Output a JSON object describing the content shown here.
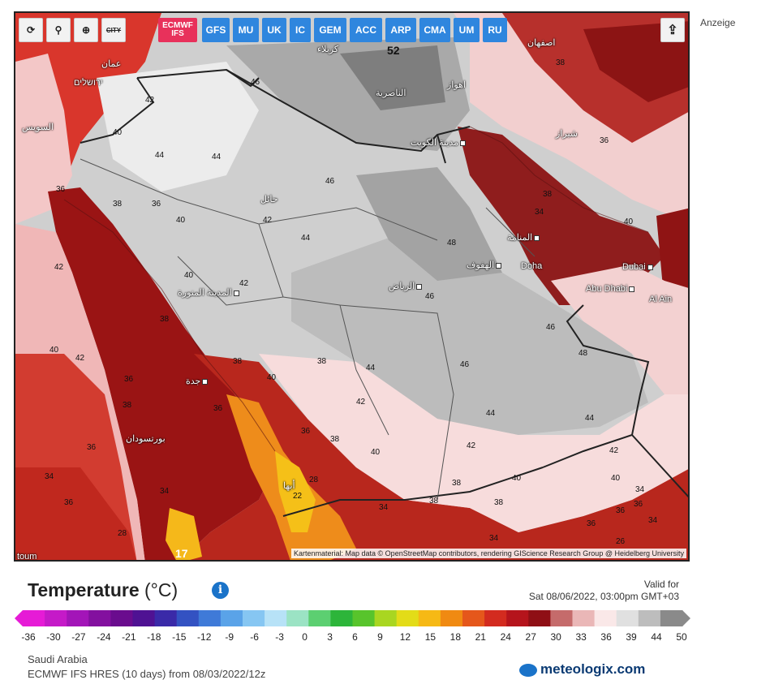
{
  "toolbar": {
    "tools": [
      {
        "name": "refresh-icon",
        "glyph": "⟳"
      },
      {
        "name": "location-pin-icon",
        "glyph": "⚲"
      },
      {
        "name": "zoom-icon",
        "glyph": "⊕"
      },
      {
        "name": "city-toggle-icon",
        "glyph": "CITY"
      }
    ],
    "models": [
      "GFS",
      "MU",
      "UK",
      "IC",
      "GEM",
      "ACC",
      "ARP",
      "CMA",
      "UM",
      "RU"
    ],
    "active_model_line1": "ECMWF",
    "active_model_line2": "IFS",
    "share_icon": "share-icon"
  },
  "ad_label": "Anzeige",
  "map": {
    "attribution": "Kartenmaterial: Map data © OpenStreetMap contributors, rendering GIScience Research Group @ Heidelberg University",
    "cities": [
      {
        "id": "riyadh",
        "text": "الرياض"
      },
      {
        "id": "medina",
        "text": "المدينة المنورة"
      },
      {
        "id": "jeddah",
        "text": "جدة"
      },
      {
        "id": "kuwait",
        "text": "مدينة الكويت"
      },
      {
        "id": "manama",
        "text": "المنامة"
      },
      {
        "id": "hofuf",
        "text": "الهفوف"
      },
      {
        "id": "doha",
        "text": "Doha"
      },
      {
        "id": "dubai",
        "text": "Dubai"
      },
      {
        "id": "abudhabi",
        "text": "Abu Dhabi"
      },
      {
        "id": "alain",
        "text": "Al Ain"
      },
      {
        "id": "hail",
        "text": "حائل"
      },
      {
        "id": "nasiriyah",
        "text": "الناصرية"
      },
      {
        "id": "ahvaz",
        "text": "اهواز"
      },
      {
        "id": "shiraz",
        "text": "شيراز"
      },
      {
        "id": "isfahan",
        "text": "اصفهان"
      },
      {
        "id": "amman",
        "text": "عمان"
      },
      {
        "id": "jerusalem",
        "text": "ירושלים"
      },
      {
        "id": "suez",
        "text": "السويس"
      },
      {
        "id": "portsudan",
        "text": "بورتسودان"
      },
      {
        "id": "karbala",
        "text": "كربلاء"
      },
      {
        "id": "abha",
        "text": "أبها"
      },
      {
        "id": "khartoum",
        "text": "toum"
      }
    ],
    "temperature_labels": [
      "52",
      "46",
      "44",
      "46",
      "48",
      "46",
      "42",
      "44",
      "46",
      "44",
      "42",
      "40",
      "38",
      "36",
      "34",
      "28",
      "22",
      "17",
      "40",
      "42",
      "38",
      "36",
      "36",
      "38",
      "40",
      "44",
      "44",
      "42",
      "40",
      "38",
      "36",
      "34",
      "38",
      "36",
      "34",
      "36",
      "40",
      "42",
      "44",
      "46",
      "48",
      "40",
      "42",
      "38",
      "28",
      "26",
      "40",
      "38",
      "34",
      "36",
      "38",
      "34",
      "36",
      "40",
      "38",
      "42",
      "40",
      "36",
      "34",
      "38",
      "38",
      "36",
      "34",
      "42",
      "36"
    ]
  },
  "legend": {
    "title": "Temperature",
    "unit": "(°C)",
    "valid_label": "Valid for",
    "valid_time": "Sat 08/06/2022, 03:00pm GMT+03",
    "ticks": [
      "-36",
      "-30",
      "-27",
      "-24",
      "-21",
      "-18",
      "-15",
      "-12",
      "-9",
      "-6",
      "-3",
      "0",
      "3",
      "6",
      "9",
      "12",
      "15",
      "18",
      "21",
      "24",
      "27",
      "30",
      "33",
      "36",
      "39",
      "44",
      "50"
    ],
    "colors": [
      "#e61bd6",
      "#c51ac8",
      "#a315b8",
      "#83109f",
      "#6a0c8e",
      "#4f1293",
      "#3a2aa8",
      "#3352c2",
      "#3f7ad8",
      "#5aa3e8",
      "#86c6f2",
      "#b7e2f7",
      "#9be3c4",
      "#5ccf71",
      "#2db53a",
      "#58c42c",
      "#a9d621",
      "#e3dc18",
      "#f6b915",
      "#f08a12",
      "#e5571b",
      "#d32b1f",
      "#b5141c",
      "#8f0f15",
      "#c56b6b",
      "#eab7b7",
      "#fae8e8",
      "#e0e0e0",
      "#bdbdbd",
      "#8a8a8a"
    ],
    "info_icon": "info-icon"
  },
  "footer": {
    "region": "Saudi Arabia",
    "model_run": "ECMWF IFS HRES (10 days) from 08/03/2022/12z",
    "brand": "meteologix.com"
  }
}
